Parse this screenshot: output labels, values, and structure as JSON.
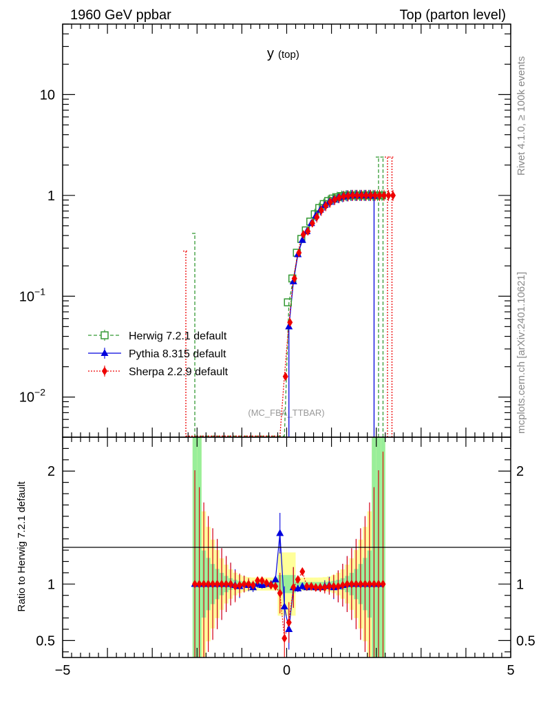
{
  "header": {
    "left": "1960 GeV ppbar",
    "right": "Top (parton level)"
  },
  "side_labels": {
    "rivet": "Rivet 4.1.0, ≥ 100k events",
    "mcplots": "mcplots.cern.ch [arXiv:2401.10621]"
  },
  "chart_data": {
    "type": "line",
    "title": "y",
    "title_sub": "(top)",
    "analysis": "(MC_FBA_TTBAR)",
    "xlim": [
      -5,
      5
    ],
    "main": {
      "yscale": "log",
      "ylim": [
        0.004,
        50
      ],
      "y_ticks": [
        {
          "v": 10,
          "label": "10"
        },
        {
          "v": 1,
          "label": "1"
        },
        {
          "v": 0.1,
          "label": "10",
          "exp": "−1"
        },
        {
          "v": 0.01,
          "label": "10",
          "exp": "−2"
        }
      ]
    },
    "ratio": {
      "ylabel": "Ratio to Herwig 7.2.1 default",
      "ylim": [
        0.35,
        2.3
      ],
      "y_ticks": [
        {
          "v": 2,
          "label": "2"
        },
        {
          "v": 1,
          "label": "1"
        },
        {
          "v": 0.5,
          "label": "0.5"
        }
      ]
    },
    "x_ticks": [
      {
        "v": -5,
        "label": "−5"
      },
      {
        "v": 0,
        "label": "0"
      },
      {
        "v": 5,
        "label": "5"
      }
    ],
    "legend": {
      "position": "left",
      "entries": [
        {
          "label": "Herwig 7.2.1 default",
          "color": "#339933",
          "marker": "open-square",
          "dash": "dashed"
        },
        {
          "label": "Pythia 8.315 default",
          "color": "#0000dd",
          "marker": "triangle",
          "dash": "solid"
        },
        {
          "label": "Sherpa 2.2.9 default",
          "color": "#ee0000",
          "marker": "diamond",
          "dash": "dotted"
        }
      ]
    },
    "series": [
      {
        "name": "Herwig 7.2.1 default",
        "color": "#339933",
        "points": [
          [
            -2.05,
            0.0041
          ],
          [
            -0.05,
            0.0041
          ],
          [
            0.05,
            0.087
          ],
          [
            0.15,
            0.15
          ],
          [
            0.25,
            0.27
          ],
          [
            0.35,
            0.37
          ],
          [
            0.45,
            0.45
          ],
          [
            0.55,
            0.55
          ],
          [
            0.65,
            0.65
          ],
          [
            0.75,
            0.75
          ],
          [
            0.85,
            0.82
          ],
          [
            0.95,
            0.88
          ],
          [
            1.05,
            0.93
          ],
          [
            1.15,
            0.96
          ],
          [
            1.25,
            0.985
          ],
          [
            1.35,
            0.995
          ],
          [
            1.45,
            1.0
          ],
          [
            1.55,
            1.0
          ],
          [
            1.65,
            1.0
          ],
          [
            1.75,
            1.0
          ],
          [
            1.85,
            1.0
          ],
          [
            1.95,
            1.0
          ],
          [
            2.05,
            1.0
          ],
          [
            2.15,
            1.0
          ]
        ],
        "spikes": [
          [
            -2.05,
            0.42
          ],
          [
            2.05,
            2.4
          ],
          [
            2.15,
            2.4
          ]
        ]
      },
      {
        "name": "Pythia 8.315 default",
        "color": "#0000dd",
        "points": [
          [
            0.05,
            0.05
          ],
          [
            0.15,
            0.14
          ],
          [
            0.25,
            0.26
          ],
          [
            0.35,
            0.36
          ],
          [
            0.45,
            0.44
          ],
          [
            0.55,
            0.53
          ],
          [
            0.65,
            0.63
          ],
          [
            0.75,
            0.72
          ],
          [
            0.85,
            0.8
          ],
          [
            0.95,
            0.86
          ],
          [
            1.05,
            0.91
          ],
          [
            1.15,
            0.95
          ],
          [
            1.25,
            0.97
          ],
          [
            1.35,
            0.99
          ],
          [
            1.45,
            1.0
          ],
          [
            1.55,
            1.0
          ],
          [
            1.65,
            1.0
          ],
          [
            1.75,
            1.0
          ],
          [
            1.85,
            1.0
          ],
          [
            1.95,
            0.99
          ]
        ]
      },
      {
        "name": "Sherpa 2.2.9 default",
        "color": "#ee0000",
        "points": [
          [
            -2.25,
            0.0041
          ],
          [
            -0.15,
            0.0041
          ],
          [
            -0.05,
            0.016
          ],
          [
            0.05,
            0.055
          ],
          [
            0.15,
            0.15
          ],
          [
            0.25,
            0.27
          ],
          [
            0.35,
            0.41
          ],
          [
            0.45,
            0.44
          ],
          [
            0.55,
            0.53
          ],
          [
            0.65,
            0.61
          ],
          [
            0.75,
            0.71
          ],
          [
            0.85,
            0.79
          ],
          [
            0.95,
            0.86
          ],
          [
            1.05,
            0.91
          ],
          [
            1.15,
            0.95
          ],
          [
            1.25,
            0.98
          ],
          [
            1.35,
            0.99
          ],
          [
            1.45,
            1.0
          ],
          [
            1.55,
            1.0
          ],
          [
            1.65,
            1.0
          ],
          [
            1.75,
            1.0
          ],
          [
            1.85,
            1.0
          ],
          [
            1.95,
            1.0
          ],
          [
            2.05,
            1.0
          ],
          [
            2.15,
            1.0
          ],
          [
            2.25,
            1.0
          ],
          [
            2.35,
            1.0
          ]
        ],
        "spikes": [
          [
            -2.25,
            0.28
          ],
          [
            2.25,
            2.4
          ],
          [
            2.35,
            2.4
          ]
        ]
      }
    ],
    "ratio_series": [
      {
        "name": "Pythia 8.315 default",
        "color": "#0000dd",
        "points": [
          [
            -2.05,
            1.0
          ],
          [
            -1.95,
            1.0
          ],
          [
            -1.85,
            1.0
          ],
          [
            -1.75,
            1.0
          ],
          [
            -1.65,
            1.0
          ],
          [
            -1.55,
            1.0
          ],
          [
            -1.45,
            1.0
          ],
          [
            -1.35,
            1.0
          ],
          [
            -1.25,
            1.0
          ],
          [
            -1.15,
            0.99
          ],
          [
            -1.05,
            0.98
          ],
          [
            -0.95,
            1.0
          ],
          [
            -0.85,
            0.99
          ],
          [
            -0.75,
            0.97
          ],
          [
            -0.65,
            1.0
          ],
          [
            -0.55,
            0.99
          ],
          [
            -0.45,
            1.0
          ],
          [
            -0.35,
            1.0
          ],
          [
            -0.25,
            1.04
          ],
          [
            -0.15,
            1.45
          ],
          [
            -0.05,
            0.8
          ],
          [
            0.05,
            0.6
          ],
          [
            0.15,
            0.97
          ],
          [
            0.25,
            0.96
          ],
          [
            0.35,
            0.98
          ],
          [
            0.45,
            0.97
          ],
          [
            0.55,
            0.98
          ],
          [
            0.65,
            0.97
          ],
          [
            0.75,
            0.97
          ],
          [
            0.85,
            0.98
          ],
          [
            0.95,
            0.99
          ],
          [
            1.05,
            0.97
          ],
          [
            1.15,
            0.98
          ],
          [
            1.25,
            0.99
          ],
          [
            1.35,
            1.0
          ],
          [
            1.45,
            1.0
          ],
          [
            1.55,
            1.0
          ],
          [
            1.65,
            1.0
          ],
          [
            1.75,
            1.0
          ],
          [
            1.85,
            1.0
          ],
          [
            1.95,
            1.0
          ],
          [
            2.05,
            1.0
          ]
        ]
      },
      {
        "name": "Sherpa 2.2.9 default",
        "color": "#ee0000",
        "points": [
          [
            -2.05,
            1.0
          ],
          [
            -1.95,
            1.0
          ],
          [
            -1.85,
            1.0
          ],
          [
            -1.75,
            1.0
          ],
          [
            -1.65,
            1.0
          ],
          [
            -1.55,
            1.0
          ],
          [
            -1.45,
            1.0
          ],
          [
            -1.35,
            1.0
          ],
          [
            -1.25,
            1.0
          ],
          [
            -1.15,
            0.98
          ],
          [
            -1.05,
            0.99
          ],
          [
            -0.95,
            1.0
          ],
          [
            -0.85,
            1.0
          ],
          [
            -0.75,
            0.99
          ],
          [
            -0.65,
            1.03
          ],
          [
            -0.55,
            1.03
          ],
          [
            -0.45,
            1.01
          ],
          [
            -0.35,
            0.99
          ],
          [
            -0.25,
            0.98
          ],
          [
            -0.15,
            0.92
          ],
          [
            -0.05,
            0.52
          ],
          [
            0.05,
            0.66
          ],
          [
            0.15,
            0.97
          ],
          [
            0.25,
            1.04
          ],
          [
            0.35,
            1.11
          ],
          [
            0.45,
            0.98
          ],
          [
            0.55,
            0.98
          ],
          [
            0.65,
            0.97
          ],
          [
            0.75,
            0.97
          ],
          [
            0.85,
            0.97
          ],
          [
            0.95,
            0.98
          ],
          [
            1.05,
            0.98
          ],
          [
            1.15,
            0.98
          ],
          [
            1.25,
            0.99
          ],
          [
            1.35,
            1.0
          ],
          [
            1.45,
            1.0
          ],
          [
            1.55,
            1.0
          ],
          [
            1.65,
            1.0
          ],
          [
            1.75,
            1.0
          ],
          [
            1.85,
            1.0
          ],
          [
            1.95,
            1.0
          ],
          [
            2.05,
            1.0
          ],
          [
            2.15,
            1.0
          ]
        ]
      }
    ]
  }
}
